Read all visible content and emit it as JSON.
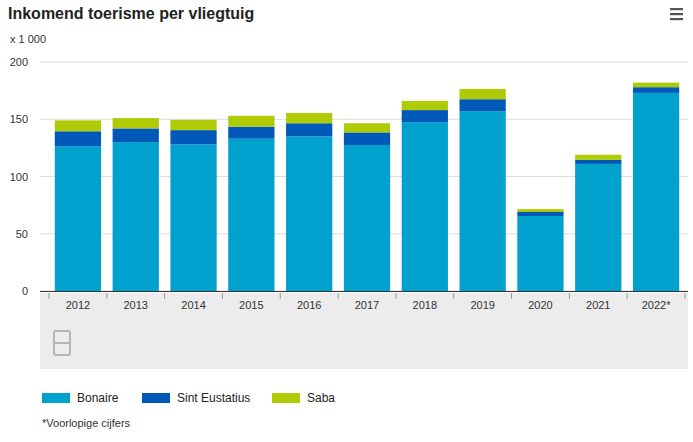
{
  "chart_data": {
    "type": "bar",
    "title": "Inkomend toerisme per vliegtuig",
    "subtitle": "x 1 000",
    "note": "*Voorlopige cijfers",
    "categories": [
      "2012",
      "2013",
      "2014",
      "2015",
      "2016",
      "2017",
      "2018",
      "2019",
      "2020",
      "2021",
      "2022*"
    ],
    "series": [
      {
        "name": "Bonaire",
        "color": "#00a1cd",
        "values": [
          126.5,
          130,
          128,
          133,
          135,
          127.5,
          147.5,
          157,
          65.5,
          111,
          173
        ]
      },
      {
        "name": "Sint Eustatius",
        "color": "#0058b8",
        "values": [
          13,
          12,
          12.5,
          10.5,
          11.5,
          11,
          10.5,
          10.5,
          3.5,
          3.5,
          5
        ]
      },
      {
        "name": "Saba",
        "color": "#afcb05",
        "values": [
          9.5,
          9,
          9,
          9.5,
          9,
          8,
          8,
          9,
          2.5,
          4.5,
          4
        ]
      }
    ],
    "stacked": true,
    "ylim": [
      0,
      200
    ],
    "yticks": [
      0,
      50,
      100,
      150,
      200
    ],
    "grid": true,
    "legend": "bottom"
  }
}
